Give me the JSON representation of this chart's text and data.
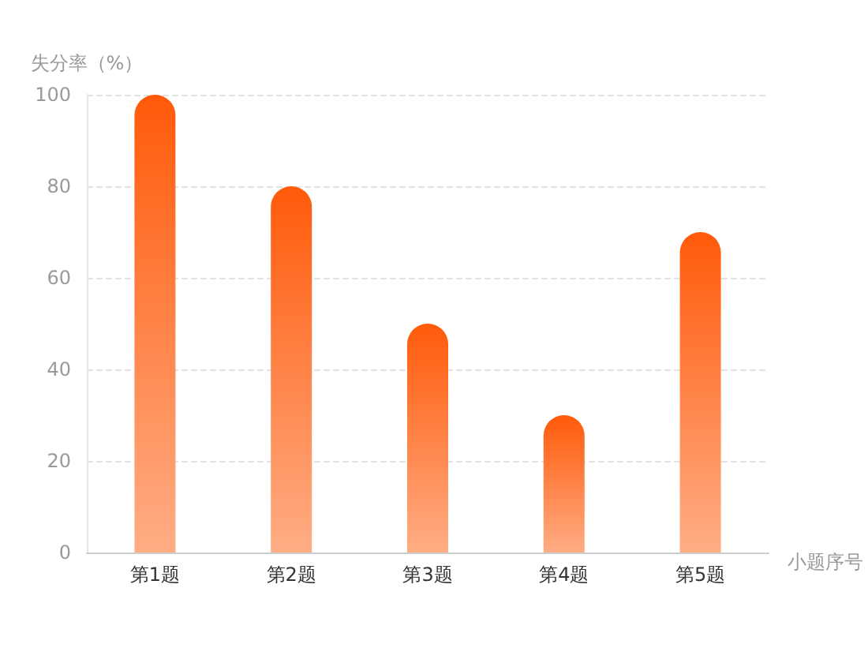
{
  "chart_data": {
    "type": "bar",
    "categories": [
      "第1题",
      "第2题",
      "第3题",
      "第4题",
      "第5题"
    ],
    "values": [
      100,
      80,
      50,
      30,
      70
    ],
    "color": "#ff5a0a",
    "xlabel": "小题序号",
    "ylabel": "失分率（%）",
    "ylim": [
      0,
      100
    ],
    "yticks": [
      0,
      20,
      40,
      60,
      80,
      100
    ],
    "grid": "y"
  }
}
